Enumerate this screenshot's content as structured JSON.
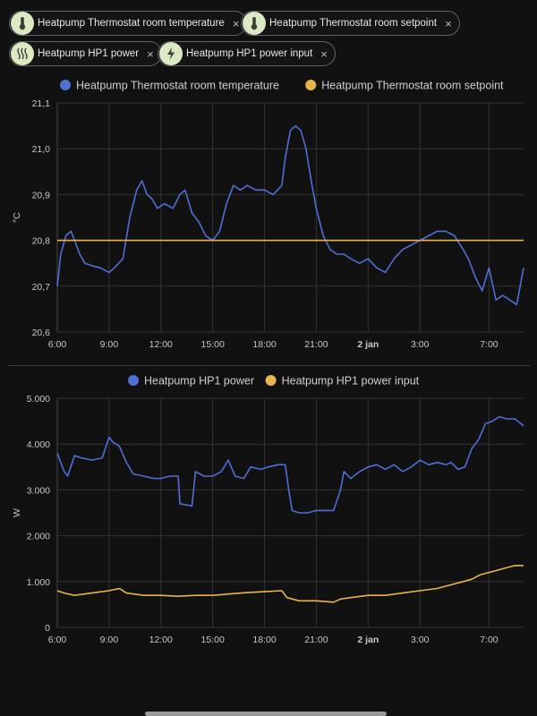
{
  "filters": {
    "chips": [
      {
        "label": "Heatpump Thermostat room temperature",
        "icon": "thermometer-icon",
        "remove": "×"
      },
      {
        "label": "Heatpump Thermostat room setpoint",
        "icon": "thermometer-icon",
        "remove": "×"
      },
      {
        "label": "Heatpump HP1 power",
        "icon": "heat-waves-icon",
        "remove": "×"
      },
      {
        "label": "Heatpump HP1 power input",
        "icon": "lightning-bolt-icon",
        "remove": "×"
      }
    ]
  },
  "colors": {
    "background": "#111111",
    "chip_icon_bg": "#dbe9c4",
    "blue_series": "#4f6fd4",
    "orange_series": "#e8b54d",
    "grid": "#333333",
    "axis_text": "#c8c8c8"
  },
  "chart_data": [
    {
      "type": "line",
      "ylabel": "°C",
      "ylim": [
        20.6,
        21.1
      ],
      "yticks": [
        "20,6",
        "20,7",
        "20,8",
        "20,9",
        "21,0",
        "21,1"
      ],
      "xticks": [
        "6:00",
        "9:00",
        "12:00",
        "15:00",
        "18:00",
        "21:00",
        "2 jan",
        "3:00",
        "7:00"
      ],
      "xtick_hours": [
        6,
        9,
        12,
        15,
        18,
        21,
        24,
        27,
        31
      ],
      "xrange_hours": [
        6,
        33
      ],
      "grid": true,
      "legend_position": "top-center",
      "series": [
        {
          "name": "Heatpump Thermostat room temperature",
          "color": "#4f6fd4",
          "x_hours": [
            6.0,
            6.2,
            6.5,
            6.8,
            7.0,
            7.3,
            7.6,
            8.0,
            8.5,
            9.0,
            9.3,
            9.8,
            10.2,
            10.6,
            10.9,
            11.2,
            11.5,
            11.8,
            12.2,
            12.7,
            13.1,
            13.4,
            13.8,
            14.2,
            14.6,
            15.0,
            15.4,
            15.8,
            16.2,
            16.6,
            17.0,
            17.5,
            18.0,
            18.5,
            19.0,
            19.2,
            19.5,
            19.8,
            20.1,
            20.4,
            20.7,
            21.0,
            21.4,
            21.8,
            22.2,
            22.6,
            23.0,
            23.5,
            24.0,
            24.5,
            25.0,
            25.5,
            26.0,
            26.5,
            27.0,
            27.5,
            28.0,
            28.5,
            29.0,
            29.5,
            29.8,
            30.2,
            30.6,
            31.0,
            31.4,
            31.8,
            32.2,
            32.6,
            33.0
          ],
          "values": [
            20.7,
            20.77,
            20.81,
            20.82,
            20.8,
            20.77,
            20.75,
            20.745,
            20.74,
            20.73,
            20.74,
            20.76,
            20.85,
            20.91,
            20.93,
            20.9,
            20.89,
            20.87,
            20.88,
            20.87,
            20.9,
            20.91,
            20.86,
            20.84,
            20.81,
            20.8,
            20.82,
            20.88,
            20.92,
            20.91,
            20.92,
            20.91,
            20.91,
            20.9,
            20.92,
            20.98,
            21.04,
            21.05,
            21.04,
            21.0,
            20.93,
            20.87,
            20.81,
            20.78,
            20.77,
            20.77,
            20.76,
            20.75,
            20.76,
            20.74,
            20.73,
            20.76,
            20.78,
            20.79,
            20.8,
            20.81,
            20.82,
            20.82,
            20.81,
            20.78,
            20.76,
            20.72,
            20.69,
            20.74,
            20.67,
            20.68,
            20.67,
            20.66,
            20.74
          ]
        },
        {
          "name": "Heatpump Thermostat room setpoint",
          "color": "#e8b54d",
          "x_hours": [
            6.0,
            33.0
          ],
          "values": [
            20.8,
            20.8
          ]
        }
      ]
    },
    {
      "type": "line",
      "ylabel": "W",
      "ylim": [
        0,
        5000
      ],
      "yticks": [
        "0",
        "1.000",
        "2.000",
        "3.000",
        "4.000",
        "5.000"
      ],
      "xticks": [
        "6:00",
        "9:00",
        "12:00",
        "15:00",
        "18:00",
        "21:00",
        "2 jan",
        "3:00",
        "7:00"
      ],
      "xtick_hours": [
        6,
        9,
        12,
        15,
        18,
        21,
        24,
        27,
        31
      ],
      "xrange_hours": [
        6,
        33
      ],
      "grid": true,
      "legend_position": "top-center",
      "series": [
        {
          "name": "Heatpump HP1 power",
          "color": "#4f6fd4",
          "x_hours": [
            6.0,
            6.4,
            6.6,
            7.0,
            7.4,
            8.0,
            8.6,
            9.0,
            9.2,
            9.6,
            10.0,
            10.4,
            11.0,
            11.6,
            12.0,
            12.5,
            13.0,
            13.1,
            13.8,
            14.0,
            14.5,
            15.0,
            15.5,
            15.9,
            16.3,
            16.8,
            17.2,
            17.8,
            18.2,
            18.8,
            19.2,
            19.4,
            19.6,
            20.0,
            20.5,
            21.0,
            21.5,
            22.0,
            22.4,
            22.6,
            23.0,
            23.5,
            24.0,
            24.5,
            25.0,
            25.5,
            26.0,
            26.5,
            27.0,
            27.5,
            28.0,
            28.5,
            28.8,
            29.2,
            29.6,
            30.0,
            30.4,
            30.8,
            31.2,
            31.6,
            32.0,
            32.5,
            33.0
          ],
          "values": [
            3800,
            3400,
            3300,
            3750,
            3700,
            3650,
            3700,
            4150,
            4050,
            3950,
            3600,
            3350,
            3300,
            3250,
            3250,
            3300,
            3300,
            2700,
            2650,
            3400,
            3300,
            3300,
            3400,
            3650,
            3300,
            3250,
            3500,
            3450,
            3500,
            3550,
            3550,
            3000,
            2550,
            2500,
            2500,
            2550,
            2550,
            2550,
            3000,
            3400,
            3250,
            3400,
            3500,
            3550,
            3450,
            3550,
            3400,
            3500,
            3650,
            3550,
            3600,
            3550,
            3600,
            3450,
            3500,
            3900,
            4100,
            4450,
            4500,
            4600,
            4550,
            4550,
            4400
          ]
        },
        {
          "name": "Heatpump HP1 power input",
          "color": "#e8b54d",
          "x_hours": [
            6.0,
            6.4,
            7.0,
            8.0,
            9.0,
            9.6,
            10.0,
            11.0,
            12.0,
            13.0,
            14.0,
            15.0,
            16.0,
            17.0,
            18.0,
            19.0,
            19.3,
            20.0,
            21.0,
            22.0,
            22.4,
            23.0,
            24.0,
            25.0,
            26.0,
            27.0,
            28.0,
            28.5,
            29.0,
            29.5,
            30.0,
            30.5,
            31.0,
            31.5,
            32.0,
            32.5,
            33.0
          ],
          "values": [
            800,
            750,
            700,
            750,
            800,
            850,
            750,
            700,
            700,
            680,
            700,
            700,
            730,
            760,
            780,
            800,
            650,
            580,
            580,
            550,
            620,
            650,
            700,
            700,
            750,
            800,
            850,
            900,
            950,
            1000,
            1050,
            1150,
            1200,
            1250,
            1300,
            1350,
            1350
          ]
        }
      ]
    }
  ]
}
